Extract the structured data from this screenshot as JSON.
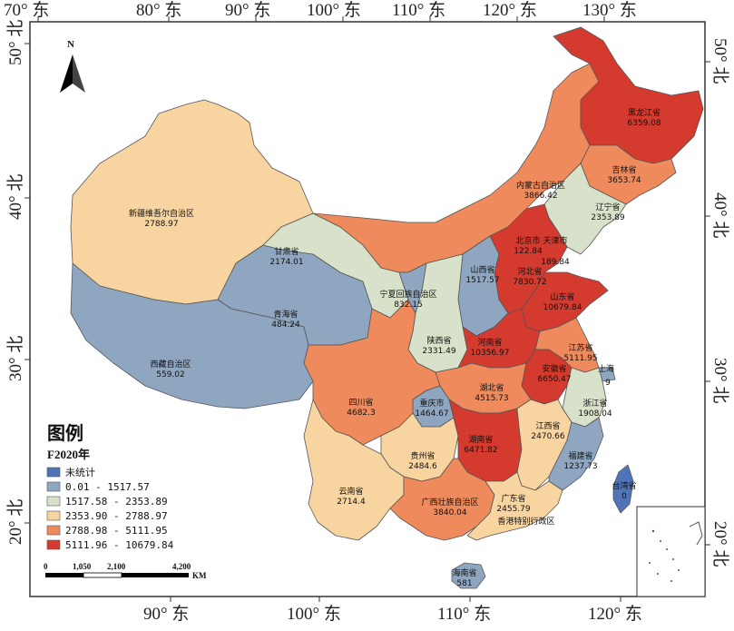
{
  "axes": {
    "top": [
      "70° 东",
      "80° 东",
      "90° 东",
      "100° 东",
      "110° 东",
      "120° 东",
      "130° 东"
    ],
    "bottom": [
      "90° 东",
      "100° 东",
      "110° 东",
      "120° 东"
    ],
    "left": [
      "50° 北",
      "40° 北",
      "30° 北",
      "20° 北"
    ],
    "right": [
      "50° 北",
      "40° 北",
      "30° 北",
      "20° 北"
    ]
  },
  "north": {
    "label": "N"
  },
  "legend": {
    "title": "图例",
    "subtitle": "F2020年",
    "items": [
      {
        "label": "未统计",
        "color": "#4f74b8"
      },
      {
        "label": "0.01 - 1517.57",
        "color": "#8fa6c1"
      },
      {
        "label": "1517.58 - 2353.89",
        "color": "#d8e1c9"
      },
      {
        "label": "2353.90 - 2788.97",
        "color": "#f8d4a0"
      },
      {
        "label": "2788.98 - 5111.95",
        "color": "#ee8a5b"
      },
      {
        "label": "5111.96 - 10679.84",
        "color": "#d43a2d"
      }
    ]
  },
  "scale": {
    "ticks": [
      "0",
      "1,050",
      "2,100",
      "4,200"
    ],
    "unit": "KM"
  },
  "provinces": [
    {
      "name": "黑龙江省",
      "value": "6359.08"
    },
    {
      "name": "吉林省",
      "value": "3653.74"
    },
    {
      "name": "辽宁省",
      "value": "2353.89"
    },
    {
      "name": "内蒙古自治区",
      "value": "3866.42"
    },
    {
      "name": "北京市",
      "value": "122.84"
    },
    {
      "name": "天津市",
      "value": ""
    },
    {
      "name": "",
      "value": "189.84"
    },
    {
      "name": "河北省",
      "value": "7830.72"
    },
    {
      "name": "山东省",
      "value": "10679.84"
    },
    {
      "name": "山西省",
      "value": "1517.57"
    },
    {
      "name": "新疆维吾尔自治区",
      "value": "2788.97"
    },
    {
      "name": "甘肃省",
      "value": "2174.01"
    },
    {
      "name": "宁夏回族自治区",
      "value": "832.15"
    },
    {
      "name": "青海省",
      "value": "484.24"
    },
    {
      "name": "陕西省",
      "value": "2331.49"
    },
    {
      "name": "河南省",
      "value": "10356.97"
    },
    {
      "name": "江苏省",
      "value": "5111.95"
    },
    {
      "name": "安徽省",
      "value": "6650.47"
    },
    {
      "name": "上海",
      "value": ""
    },
    {
      "name": "",
      "value": "9"
    },
    {
      "name": "西藏自治区",
      "value": "559.02"
    },
    {
      "name": "四川省",
      "value": "4682.3"
    },
    {
      "name": "重庆市",
      "value": "1464.67"
    },
    {
      "name": "湖北省",
      "value": "4515.73"
    },
    {
      "name": "浙江省",
      "value": "1908.04"
    },
    {
      "name": "湖南省",
      "value": "6471.82"
    },
    {
      "name": "江西省",
      "value": "2470.66"
    },
    {
      "name": "贵州省",
      "value": "2484.6"
    },
    {
      "name": "福建省",
      "value": "1237.73"
    },
    {
      "name": "云南省",
      "value": "2714.4"
    },
    {
      "name": "广西壮族自治区",
      "value": "3840.04"
    },
    {
      "name": "广东省",
      "value": "2455.79"
    },
    {
      "name": "香港特别行政区",
      "value": ""
    },
    {
      "name": "台湾省",
      "value": "0"
    },
    {
      "name": "海南省",
      "value": "581"
    }
  ]
}
